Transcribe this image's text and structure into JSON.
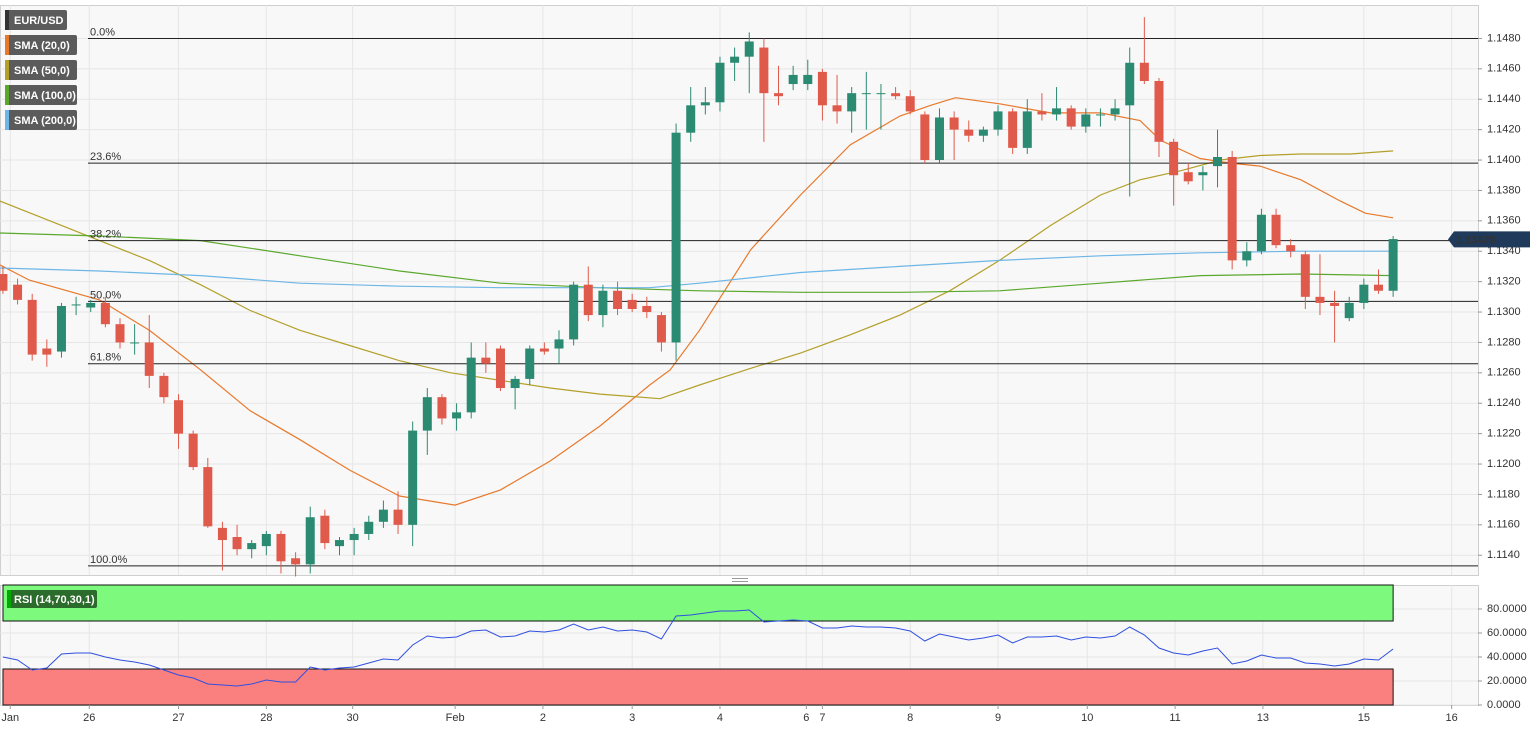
{
  "chart_data": [
    {
      "type": "candlestick",
      "symbol": "EUR/USD",
      "up_color": "#2b8a72",
      "down_color": "#e05a4b",
      "open": [
        1.1325,
        1.1318,
        1.1308,
        1.1276,
        1.1274,
        1.1305,
        1.1303,
        1.1306,
        1.1292,
        1.128,
        1.128,
        1.1258,
        1.1242,
        1.122,
        1.1198,
        1.1158,
        1.1152,
        1.1144,
        1.1146,
        1.1154,
        1.1138,
        1.1134,
        1.1166,
        1.1146,
        1.115,
        1.1154,
        1.1162,
        1.117,
        1.116,
        1.1222,
        1.1244,
        1.123,
        1.1234,
        1.127,
        1.1276,
        1.125,
        1.1256,
        1.1276,
        1.1276,
        1.1282,
        1.1318,
        1.1298,
        1.1314,
        1.1308,
        1.1304,
        1.1298,
        1.128,
        1.1418,
        1.1436,
        1.1438,
        1.1464,
        1.1468,
        1.1474,
        1.1444,
        1.145,
        1.145,
        1.1458,
        1.1436,
        1.1432,
        1.1444,
        1.1444,
        1.1444,
        1.1442,
        1.143,
        1.14,
        1.1428,
        1.142,
        1.1416,
        1.142,
        1.1432,
        1.1408,
        1.1432,
        1.143,
        1.1434,
        1.1422,
        1.143,
        1.143,
        1.1436,
        1.1464,
        1.1452,
        1.1412,
        1.1392,
        1.139,
        1.1396,
        1.1402,
        1.1334,
        1.134,
        1.1364,
        1.1344,
        1.1338,
        1.131,
        1.1306,
        1.1296,
        1.1306,
        1.1318,
        1.1314
      ],
      "high": [
        1.133,
        1.1322,
        1.1312,
        1.1282,
        1.1306,
        1.131,
        1.1308,
        1.131,
        1.1296,
        1.1292,
        1.1298,
        1.126,
        1.1246,
        1.1222,
        1.1204,
        1.1162,
        1.116,
        1.115,
        1.1156,
        1.1156,
        1.1142,
        1.1172,
        1.117,
        1.1152,
        1.1158,
        1.1166,
        1.1176,
        1.1182,
        1.1228,
        1.125,
        1.1246,
        1.124,
        1.128,
        1.128,
        1.1278,
        1.1258,
        1.1278,
        1.128,
        1.1288,
        1.132,
        1.133,
        1.1318,
        1.132,
        1.1312,
        1.131,
        1.13,
        1.1424,
        1.1448,
        1.1448,
        1.1468,
        1.1474,
        1.1484,
        1.148,
        1.1462,
        1.1462,
        1.1466,
        1.146,
        1.1456,
        1.1448,
        1.1458,
        1.145,
        1.1448,
        1.1446,
        1.1432,
        1.1434,
        1.1432,
        1.1426,
        1.1422,
        1.1436,
        1.1434,
        1.144,
        1.1444,
        1.1448,
        1.1436,
        1.1434,
        1.1434,
        1.144,
        1.1474,
        1.1494,
        1.1454,
        1.1414,
        1.1398,
        1.1396,
        1.142,
        1.1406,
        1.1346,
        1.1368,
        1.1368,
        1.1348,
        1.134,
        1.1338,
        1.1314,
        1.131,
        1.1322,
        1.1328,
        1.135
      ],
      "low": [
        1.1312,
        1.1305,
        1.1268,
        1.1264,
        1.127,
        1.1298,
        1.13,
        1.129,
        1.1276,
        1.1272,
        1.125,
        1.124,
        1.121,
        1.1196,
        1.1158,
        1.113,
        1.114,
        1.1138,
        1.114,
        1.1128,
        1.1126,
        1.1128,
        1.1144,
        1.114,
        1.114,
        1.115,
        1.1158,
        1.1154,
        1.1146,
        1.1206,
        1.1226,
        1.1222,
        1.123,
        1.126,
        1.1248,
        1.1236,
        1.1252,
        1.1272,
        1.1266,
        1.1278,
        1.1294,
        1.129,
        1.1298,
        1.13,
        1.1296,
        1.1274,
        1.1268,
        1.1412,
        1.143,
        1.1432,
        1.1452,
        1.1444,
        1.1412,
        1.1436,
        1.1446,
        1.1446,
        1.1426,
        1.1424,
        1.1418,
        1.142,
        1.142,
        1.144,
        1.143,
        1.1398,
        1.1398,
        1.14,
        1.1412,
        1.1412,
        1.1416,
        1.1404,
        1.1404,
        1.1426,
        1.1426,
        1.142,
        1.1418,
        1.1422,
        1.1426,
        1.1376,
        1.145,
        1.1402,
        1.137,
        1.1384,
        1.138,
        1.1382,
        1.1328,
        1.133,
        1.1338,
        1.1342,
        1.1336,
        1.1302,
        1.1298,
        1.128,
        1.1294,
        1.1302,
        1.1312,
        1.131
      ],
      "close": [
        1.1314,
        1.1308,
        1.1272,
        1.1272,
        1.1304,
        1.1305,
        1.1306,
        1.1292,
        1.128,
        1.128,
        1.1258,
        1.1244,
        1.122,
        1.1198,
        1.1159,
        1.115,
        1.1144,
        1.1148,
        1.1154,
        1.1136,
        1.1134,
        1.1165,
        1.1148,
        1.115,
        1.1154,
        1.1162,
        1.117,
        1.116,
        1.1222,
        1.1244,
        1.123,
        1.1234,
        1.127,
        1.1266,
        1.125,
        1.1256,
        1.1276,
        1.1274,
        1.1282,
        1.1318,
        1.1298,
        1.1314,
        1.1302,
        1.1302,
        1.13,
        1.128,
        1.1418,
        1.1436,
        1.1438,
        1.1464,
        1.1468,
        1.1478,
        1.1444,
        1.1442,
        1.1456,
        1.1456,
        1.1436,
        1.1432,
        1.1444,
        1.1444,
        1.1444,
        1.1442,
        1.1432,
        1.14,
        1.1428,
        1.142,
        1.1416,
        1.142,
        1.1432,
        1.1408,
        1.1432,
        1.143,
        1.1434,
        1.1422,
        1.143,
        1.143,
        1.1434,
        1.1464,
        1.1452,
        1.1412,
        1.139,
        1.1386,
        1.1392,
        1.1402,
        1.1334,
        1.134,
        1.1364,
        1.1344,
        1.134,
        1.131,
        1.1306,
        1.1304,
        1.1306,
        1.1318,
        1.1314,
        1.1348
      ],
      "series": [
        {
          "name": "SMA (20,0)",
          "color": "#e8792b",
          "x": [
            -0.2,
            1.8,
            6.6,
            10.0,
            13.5,
            16.9,
            20.3,
            23.7,
            27.1,
            30.9,
            34.0,
            37.4,
            40.8,
            44.2,
            45.6,
            47.6,
            51.1,
            54.5,
            57.9,
            61.3,
            63.4,
            65.1,
            68.1,
            71.6,
            75.0,
            77.7,
            79.1,
            81.8,
            83.9,
            85.9,
            88.7,
            91.4,
            93.1,
            95.0
          ],
          "values": [
            1.1331,
            1.1321,
            1.1308,
            1.1288,
            1.1262,
            1.1235,
            1.1216,
            1.1196,
            1.1179,
            1.1173,
            1.1183,
            1.1202,
            1.1225,
            1.1252,
            1.1262,
            1.1288,
            1.1341,
            1.1377,
            1.141,
            1.1429,
            1.1436,
            1.1441,
            1.1437,
            1.1431,
            1.1431,
            1.1426,
            1.1413,
            1.1401,
            1.1398,
            1.1396,
            1.1387,
            1.1373,
            1.1365,
            1.1362
          ]
        },
        {
          "name": "SMA (50,0)",
          "color": "#b3a02a",
          "x": [
            -0.2,
            3.2,
            6.6,
            10.0,
            13.5,
            16.9,
            20.3,
            23.7,
            27.1,
            30.6,
            34.0,
            37.4,
            40.8,
            44.9,
            47.6,
            51.1,
            54.5,
            57.9,
            61.3,
            64.7,
            68.1,
            71.6,
            75.0,
            77.7,
            80.5,
            83.2,
            85.9,
            88.7,
            92.1,
            95.0
          ],
          "values": [
            1.1373,
            1.136,
            1.1347,
            1.1334,
            1.1318,
            1.1301,
            1.1288,
            1.1278,
            1.1268,
            1.126,
            1.1255,
            1.125,
            1.1246,
            1.1243,
            1.1252,
            1.1263,
            1.1273,
            1.1285,
            1.1298,
            1.1314,
            1.1334,
            1.1357,
            1.1377,
            1.1387,
            1.1393,
            1.14,
            1.1403,
            1.1404,
            1.1404,
            1.1406
          ]
        },
        {
          "name": "SMA (100,0)",
          "color": "#5aa82c",
          "x": [
            -0.2,
            6.6,
            13.5,
            20.3,
            27.1,
            34.0,
            40.8,
            47.6,
            54.5,
            61.3,
            68.1,
            75.0,
            81.8,
            88.7,
            95.0
          ],
          "values": [
            1.1352,
            1.135,
            1.1347,
            1.1337,
            1.1327,
            1.1319,
            1.1316,
            1.1314,
            1.1313,
            1.1313,
            1.1314,
            1.1319,
            1.1324,
            1.1325,
            1.1324
          ]
        },
        {
          "name": "SMA (200,0)",
          "color": "#6db6e6",
          "x": [
            -0.2,
            6.6,
            13.5,
            20.3,
            27.1,
            34.0,
            40.8,
            44.2,
            47.6,
            54.5,
            61.3,
            68.1,
            75.0,
            81.8,
            88.7,
            95.0
          ],
          "values": [
            1.1329,
            1.1327,
            1.1324,
            1.1319,
            1.1317,
            1.1316,
            1.1316,
            1.1316,
            1.1319,
            1.1326,
            1.133,
            1.1334,
            1.1337,
            1.1339,
            1.134,
            1.134
          ]
        }
      ],
      "levels": [
        {
          "value": 1.148,
          "label": "0.0%"
        },
        {
          "value": 1.1398,
          "label": "23.6%"
        },
        {
          "value": 1.1347,
          "label": "38.2%"
        },
        {
          "value": 1.1307,
          "label": "50.0%"
        },
        {
          "value": 1.1266,
          "label": "61.8%"
        },
        {
          "value": 1.1133,
          "label": "100.0%"
        }
      ],
      "last_price": 1.13478,
      "xlim": [
        -0.2,
        100.8
      ],
      "ylim": [
        1.1127,
        1.1502
      ],
      "yticks": [
        {
          "value": 1.114,
          "label": "1.1140"
        },
        {
          "value": 1.116,
          "label": "1.1160"
        },
        {
          "value": 1.118,
          "label": "1.1180"
        },
        {
          "value": 1.12,
          "label": "1.1200"
        },
        {
          "value": 1.122,
          "label": "1.1220"
        },
        {
          "value": 1.124,
          "label": "1.1240"
        },
        {
          "value": 1.126,
          "label": "1.1260"
        },
        {
          "value": 1.128,
          "label": "1.1280"
        },
        {
          "value": 1.13,
          "label": "1.1300"
        },
        {
          "value": 1.132,
          "label": "1.1320"
        },
        {
          "value": 1.134,
          "label": "1.1340"
        },
        {
          "value": 1.136,
          "label": "1.1360"
        },
        {
          "value": 1.138,
          "label": "1.1380"
        },
        {
          "value": 1.14,
          "label": "1.1400"
        },
        {
          "value": 1.142,
          "label": "1.1420"
        },
        {
          "value": 1.144,
          "label": "1.1440"
        },
        {
          "value": 1.146,
          "label": "1.1460"
        },
        {
          "value": 1.148,
          "label": "1.1480"
        }
      ],
      "grid": true
    },
    {
      "type": "line",
      "series": [
        {
          "name": "RSI (14,70,30,1)",
          "color": "#2f4fe0",
          "values": [
            40.0,
            37.5,
            29.2,
            30.8,
            42.5,
            43.3,
            43.3,
            40.0,
            37.5,
            35.8,
            33.3,
            29.2,
            25.0,
            22.5,
            17.5,
            16.7,
            15.8,
            17.5,
            20.8,
            19.2,
            19.2,
            31.7,
            29.2,
            30.8,
            31.7,
            35.0,
            38.3,
            37.5,
            50.0,
            57.5,
            55.8,
            56.7,
            61.7,
            62.5,
            56.7,
            57.5,
            61.7,
            60.8,
            62.5,
            67.5,
            62.5,
            65.0,
            61.7,
            62.5,
            60.8,
            55.0,
            74.2,
            75.0,
            76.7,
            78.3,
            78.3,
            79.2,
            69.2,
            70.0,
            70.8,
            70.0,
            64.2,
            64.2,
            65.8,
            65.0,
            65.0,
            64.2,
            61.7,
            53.3,
            59.2,
            56.7,
            54.2,
            55.8,
            58.3,
            51.7,
            56.7,
            56.7,
            57.5,
            54.2,
            56.7,
            55.8,
            57.5,
            65.0,
            58.3,
            47.5,
            43.3,
            41.7,
            45.0,
            47.5,
            34.2,
            36.7,
            41.7,
            39.2,
            39.2,
            35.0,
            34.2,
            32.5,
            34.2,
            38.3,
            37.5,
            46.7
          ]
        }
      ],
      "zones": [
        {
          "from": 70,
          "to": 100,
          "color": "#7dfa7d"
        },
        {
          "from": 0,
          "to": 30,
          "color": "#fa8080"
        }
      ],
      "xlim": [
        -0.2,
        100.8
      ],
      "ylim": [
        0,
        100
      ],
      "yticks": [
        {
          "value": 0,
          "label": "0.0000"
        },
        {
          "value": 20,
          "label": "20.0000"
        },
        {
          "value": 40,
          "label": "40.0000"
        },
        {
          "value": 60,
          "label": "60.0000"
        },
        {
          "value": 80,
          "label": "80.0000"
        }
      ],
      "xticks": [
        {
          "value": 0.5,
          "label": "Jan"
        },
        {
          "value": 5.9,
          "label": "26"
        },
        {
          "value": 12.0,
          "label": "27"
        },
        {
          "value": 18.0,
          "label": "28"
        },
        {
          "value": 23.9,
          "label": "30"
        },
        {
          "value": 30.9,
          "label": "Feb"
        },
        {
          "value": 36.9,
          "label": "2"
        },
        {
          "value": 43.0,
          "label": "3"
        },
        {
          "value": 49.0,
          "label": "4"
        },
        {
          "value": 54.9,
          "label": "6"
        },
        {
          "value": 56.0,
          "label": "7"
        },
        {
          "value": 62.0,
          "label": "8"
        },
        {
          "value": 68.0,
          "label": "9"
        },
        {
          "value": 74.1,
          "label": "10"
        },
        {
          "value": 80.1,
          "label": "11"
        },
        {
          "value": 86.1,
          "label": "13"
        },
        {
          "value": 93.0,
          "label": "15"
        },
        {
          "value": 99.0,
          "label": "16"
        }
      ],
      "grid": true
    }
  ]
}
